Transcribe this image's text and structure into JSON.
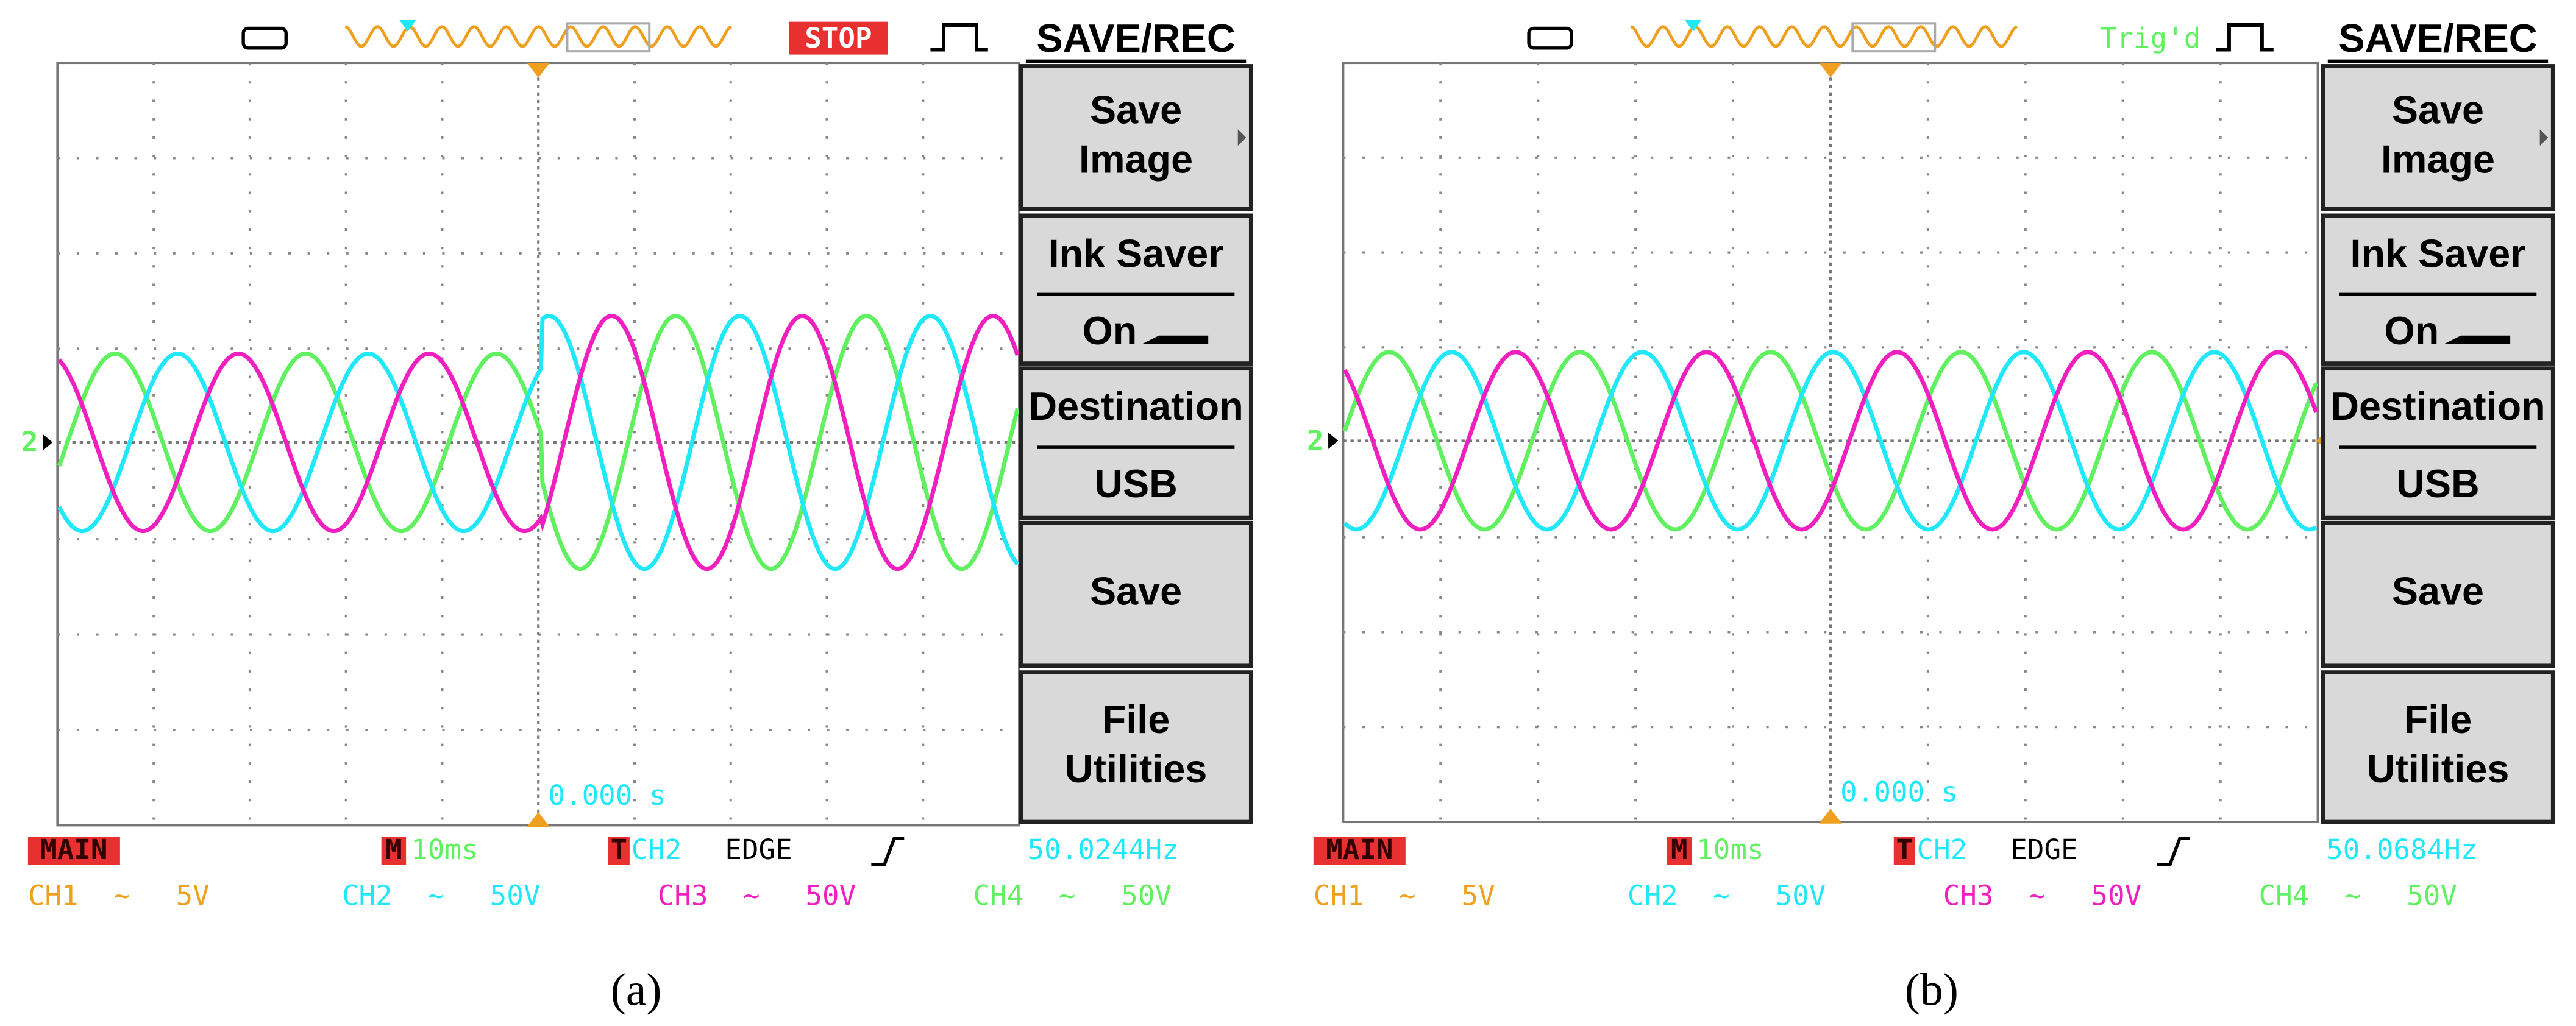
{
  "panels": [
    {
      "caption": "(a)",
      "status": "STOP",
      "menu_title": "SAVE/REC",
      "menu": [
        {
          "lines": [
            "Save",
            "Image"
          ]
        },
        {
          "label": "Ink Saver",
          "value": "On"
        },
        {
          "label": "Destination",
          "value": "USB"
        },
        {
          "lines": [
            "Save"
          ]
        },
        {
          "lines": [
            "File",
            "Utilities"
          ]
        }
      ],
      "marker": "2",
      "time_readout": "0.000 s",
      "mode": "MAIN",
      "timebase_badge": "M",
      "timebase": "10ms",
      "trigger_badge": "T",
      "trigger_source": "CH2",
      "trigger_type": "EDGE",
      "frequency": "50.0244Hz",
      "channels": [
        {
          "name": "CH1",
          "coupling": "~",
          "scale": "5V"
        },
        {
          "name": "CH2",
          "coupling": "~",
          "scale": "50V"
        },
        {
          "name": "CH3",
          "coupling": "~",
          "scale": "50V"
        },
        {
          "name": "CH4",
          "coupling": "~",
          "scale": "50V"
        }
      ]
    },
    {
      "caption": "(b)",
      "status": "Trig'd",
      "menu_title": "SAVE/REC",
      "menu": [
        {
          "lines": [
            "Save",
            "Image"
          ]
        },
        {
          "label": "Ink Saver",
          "value": "On"
        },
        {
          "label": "Destination",
          "value": "USB"
        },
        {
          "lines": [
            "Save"
          ]
        },
        {
          "lines": [
            "File",
            "Utilities"
          ]
        }
      ],
      "marker": "2",
      "time_readout": "0.000 s",
      "mode": "MAIN",
      "timebase_badge": "M",
      "timebase": "10ms",
      "trigger_badge": "T",
      "trigger_source": "CH2",
      "trigger_type": "EDGE",
      "frequency": "50.0684Hz",
      "channels": [
        {
          "name": "CH1",
          "coupling": "~",
          "scale": "5V"
        },
        {
          "name": "CH2",
          "coupling": "~",
          "scale": "50V"
        },
        {
          "name": "CH3",
          "coupling": "~",
          "scale": "50V"
        },
        {
          "name": "CH4",
          "coupling": "~",
          "scale": "50V"
        }
      ]
    }
  ]
}
